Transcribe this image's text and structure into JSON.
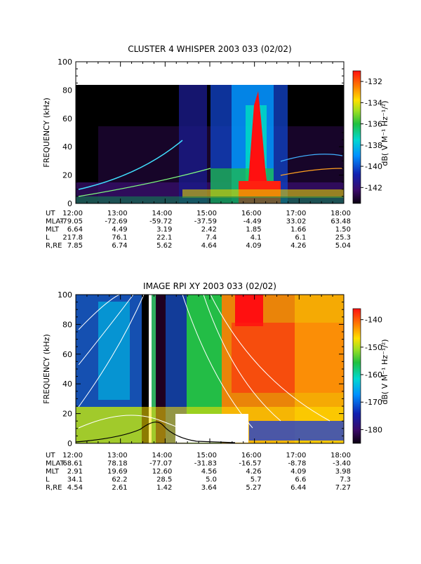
{
  "chart_data": [
    {
      "type": "heatmap",
      "title": "CLUSTER 4 WHISPER 2003 033 (02/02)",
      "ylabel": "FREQUENCY (kHz)",
      "ylim": [
        0,
        100
      ],
      "yticks": [
        "0",
        "20",
        "40",
        "60",
        "80",
        "100"
      ],
      "x_ticks": [
        "12:00",
        "13:00",
        "14:00",
        "15:00",
        "16:00",
        "17:00",
        "18:00"
      ],
      "x_range_hours": [
        12,
        18
      ],
      "data_max_freq_khz": 80,
      "colorbar": {
        "label": "dB( V M⁻¹ Hz⁻¹/²)",
        "range": [
          -143.5,
          -131
        ],
        "ticks": [
          "-132",
          "-134",
          "-136",
          "-138",
          "-140",
          "-142"
        ],
        "tick_values": [
          -132,
          -134,
          -136,
          -138,
          -140,
          -142
        ]
      },
      "ephemeris": [
        {
          "label": "UT",
          "values": [
            "12:00",
            "13:00",
            "14:00",
            "15:00",
            "16:00",
            "17:00",
            "18:00"
          ]
        },
        {
          "label": "MLAT",
          "values": [
            "-79.05",
            "-72.69",
            "-59.72",
            "-37.59",
            "-4.49",
            "33.02",
            "63.48"
          ]
        },
        {
          "label": "MLT",
          "values": [
            "6.64",
            "4.49",
            "3.19",
            "2.42",
            "1.85",
            "1.66",
            "1.50"
          ]
        },
        {
          "label": "L",
          "values": [
            "217.8",
            "76.1",
            "22.1",
            "7.4",
            "4.1",
            "6.1",
            "25.3"
          ]
        },
        {
          "label": "R,RE",
          "values": [
            "7.85",
            "6.74",
            "5.62",
            "4.64",
            "4.09",
            "4.26",
            "5.04"
          ]
        }
      ]
    },
    {
      "type": "heatmap",
      "title": "IMAGE RPI XY 2003 033 (02/02)",
      "ylabel": "FREQUENCY (kHz)",
      "ylim": [
        0,
        100
      ],
      "yticks": [
        "0",
        "20",
        "40",
        "60",
        "80",
        "100"
      ],
      "x_ticks": [
        "12:00",
        "13:00",
        "14:00",
        "15:00",
        "16:00",
        "17:00",
        "18:00"
      ],
      "x_range_hours": [
        12,
        18
      ],
      "colorbar": {
        "label": "dB( V M⁻¹ Hz⁻¹/²)",
        "range": [
          -185,
          -136
        ],
        "ticks": [
          "-140",
          "-150",
          "-160",
          "-170",
          "-180"
        ],
        "tick_values": [
          -140,
          -150,
          -160,
          -170,
          -180
        ]
      },
      "ephemeris": [
        {
          "label": "UT",
          "values": [
            "12:00",
            "13:00",
            "14:00",
            "15:00",
            "16:00",
            "17:00",
            "18:00"
          ]
        },
        {
          "label": "MLAT",
          "values": [
            "68.61",
            "78.18",
            "-77.07",
            "-31.83",
            "-16.57",
            "-8.78",
            "-3.40"
          ]
        },
        {
          "label": "MLT",
          "values": [
            "2.91",
            "19.69",
            "12.60",
            "4.56",
            "4.26",
            "4.09",
            "3.98"
          ]
        },
        {
          "label": "L",
          "values": [
            "34.1",
            "62.2",
            "28.5",
            "5.0",
            "5.7",
            "6.6",
            "7.3"
          ]
        },
        {
          "label": "R,RE",
          "values": [
            "4.54",
            "2.61",
            "1.42",
            "3.64",
            "5.27",
            "6.44",
            "7.27"
          ]
        }
      ]
    }
  ]
}
